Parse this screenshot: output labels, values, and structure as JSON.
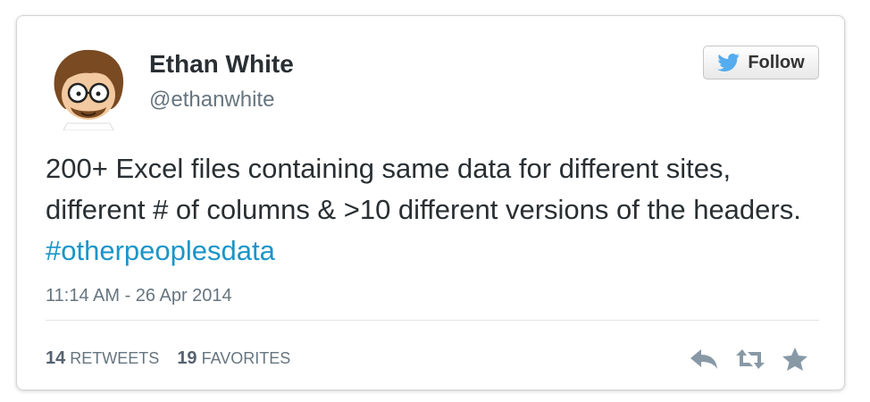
{
  "user": {
    "display_name": "Ethan White",
    "handle": "@ethanwhite"
  },
  "follow_button": {
    "label": "Follow",
    "icon": "twitter-bird-icon"
  },
  "tweet": {
    "text": "200+ Excel files containing same data for different sites, different # of columns & >10 different versions of the headers. ",
    "hashtag": "#otherpeoplesdata",
    "timestamp": "11:14 AM - 26 Apr 2014"
  },
  "stats": {
    "retweets_count": "14",
    "retweets_label": "RETWEETS",
    "favorites_count": "19",
    "favorites_label": "FAVORITES"
  },
  "actions": {
    "icons": [
      "reply-icon",
      "retweet-icon",
      "favorite-star-icon"
    ]
  },
  "colors": {
    "hashtag": "#1b95c7",
    "twitter_blue": "#55acee",
    "text": "#292f33",
    "muted": "#66757f"
  }
}
